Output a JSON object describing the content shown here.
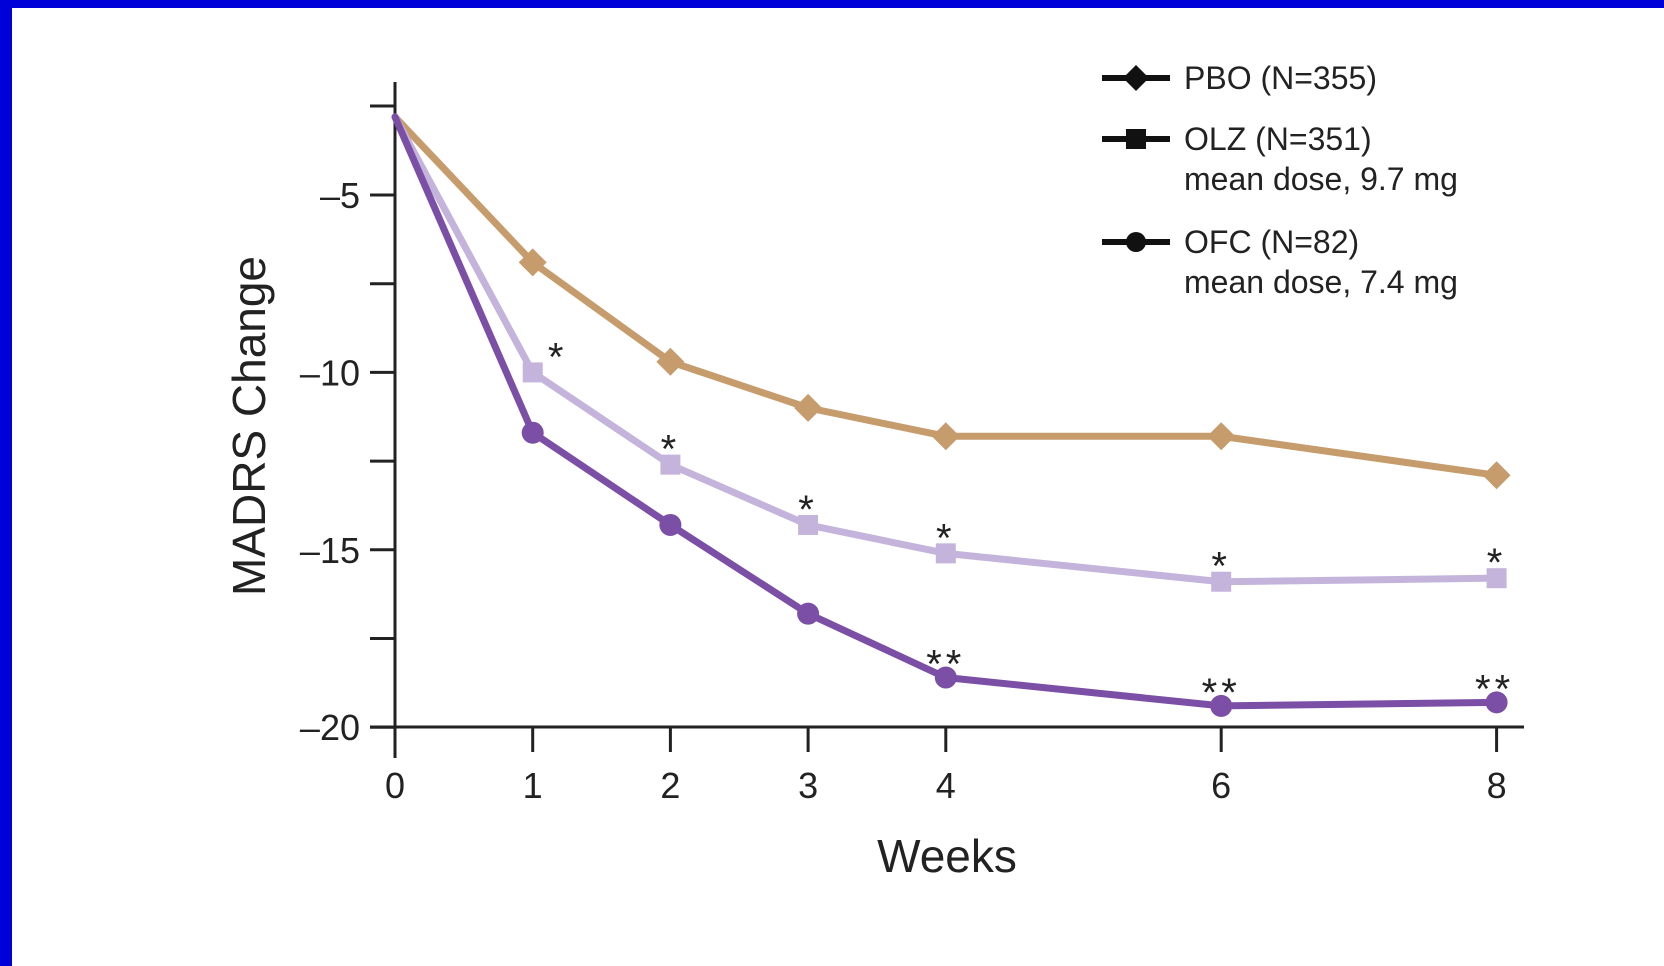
{
  "colors": {
    "slide_background": "#0000d8",
    "panel_background": "#ffffff",
    "PBO": "#c69c6d",
    "OLZ": "#c4b4dc",
    "OFC": "#7b4fa6",
    "legend_line": "#111111",
    "axis": "#222222"
  },
  "chart_data": {
    "type": "line",
    "title": "",
    "xlabel": "Weeks",
    "ylabel": "MADRS Change",
    "x": [
      0,
      1,
      2,
      3,
      4,
      6,
      8
    ],
    "xticks": [
      "0",
      "1",
      "2",
      "3",
      "4",
      "6",
      "8"
    ],
    "xlim": [
      0,
      8
    ],
    "ylim": [
      -20,
      -2.5
    ],
    "yticks": [
      -5,
      -7.5,
      -10,
      -12.5,
      -15,
      -17.5,
      -20
    ],
    "ytick_labels": [
      "–5",
      "",
      "–10",
      "",
      "–15",
      "",
      "–20"
    ],
    "grid": false,
    "legend_position": "top-right",
    "series": [
      {
        "name": "PBO (N=355)",
        "marker": "diamond",
        "color_key": "PBO",
        "values": [
          -2.8,
          -6.9,
          -9.7,
          -11.0,
          -11.8,
          -11.8,
          -12.9
        ]
      },
      {
        "name": "OLZ (N=351)",
        "note": "mean dose, 9.7 mg",
        "marker": "square",
        "color_key": "OLZ",
        "values": [
          -2.8,
          -10.0,
          -12.6,
          -14.3,
          -15.1,
          -15.9,
          -15.8
        ]
      },
      {
        "name": "OFC (N=82)",
        "note": "mean dose, 7.4 mg",
        "marker": "circle",
        "color_key": "OFC",
        "values": [
          -2.8,
          -11.7,
          -14.3,
          -16.8,
          -18.6,
          -19.4,
          -19.3
        ]
      }
    ],
    "annotations": [
      {
        "x": 1,
        "text": "*"
      },
      {
        "x": 2,
        "text": "*"
      },
      {
        "x": 3,
        "text": "*"
      },
      {
        "x": 4,
        "text": "*"
      },
      {
        "x": 6,
        "text": "*"
      },
      {
        "x": 8,
        "text": "*"
      },
      {
        "x": 4,
        "text": "**"
      },
      {
        "x": 6,
        "text": "**"
      },
      {
        "x": 8,
        "text": "**"
      }
    ]
  }
}
